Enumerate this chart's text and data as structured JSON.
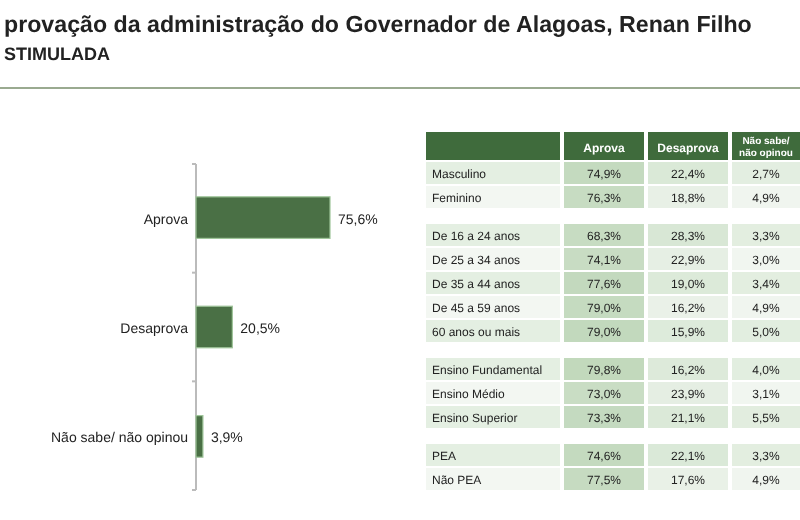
{
  "chart_data": [
    {
      "type": "bar",
      "orientation": "horizontal",
      "title": "provação da administração do Governador de Alagoas, Renan Filho",
      "subtitle": "STIMULADA",
      "categories": [
        "Aprova",
        "Desaprova",
        "Não sabe/ não opinou"
      ],
      "values": [
        75.6,
        20.5,
        3.9
      ],
      "color": "#4a7045",
      "value_labels": [
        "75,6%",
        "20,5%",
        "3,9%"
      ]
    },
    {
      "type": "heatmap",
      "categories": [
        "Aprova",
        "Desaprova",
        "Não sabe/ não opinou"
      ],
      "y_categories": [
        "Masculino",
        "Feminino"
      ],
      "cells": [
        [
          74.9,
          22.4,
          2.7
        ],
        [
          76.3,
          18.8,
          4.9
        ]
      ],
      "cell_labels": [
        [
          "74,9%",
          "22,4%",
          "2,7%"
        ],
        [
          "76,3%",
          "18,8%",
          "4,9%"
        ]
      ],
      "colors": [
        "#e4efe2",
        "#f3f7f2"
      ]
    },
    {
      "type": "heatmap",
      "categories": [
        null,
        null,
        null
      ],
      "y_categories": [
        "De 16 a 24 anos",
        "De 25 a 34 anos",
        "De 35 a 44 anos",
        "De 45 a 59 anos",
        "60 anos ou mais"
      ],
      "cells": [
        [
          68.3,
          28.3,
          3.3
        ],
        [
          74.1,
          22.9,
          3.0
        ],
        [
          77.6,
          19.0,
          3.4
        ],
        [
          79.0,
          16.2,
          4.9
        ],
        [
          79.0,
          15.9,
          5.0
        ]
      ],
      "cell_labels": [
        [
          "68,3%",
          "28,3%",
          "3,3%"
        ],
        [
          "74,1%",
          "22,9%",
          "3,0%"
        ],
        [
          "77,6%",
          "19,0%",
          "3,4%"
        ],
        [
          "79,0%",
          "16,2%",
          "4,9%"
        ],
        [
          "79,0%",
          "15,9%",
          "5,0%"
        ]
      ],
      "colors": [
        "#e4efe2",
        "#f3f7f2",
        "#e4efe2",
        "#f3f7f2",
        "#e4efe2"
      ]
    },
    {
      "type": "heatmap",
      "categories": [
        null,
        null,
        null
      ],
      "y_categories": [
        "Ensino Fundamental",
        "Ensino Médio",
        "Ensino Superior"
      ],
      "cells": [
        [
          79.8,
          16.2,
          4.0
        ],
        [
          73.0,
          23.9,
          3.1
        ],
        [
          73.3,
          21.1,
          5.5
        ]
      ],
      "cell_labels": [
        [
          "79,8%",
          "16,2%",
          "4,0%"
        ],
        [
          "73,0%",
          "23,9%",
          "3,1%"
        ],
        [
          "73,3%",
          "21,1%",
          "5,5%"
        ]
      ],
      "colors": [
        "#e4efe2",
        "#f3f7f2",
        "#e4efe2"
      ]
    },
    {
      "type": "heatmap",
      "categories": [
        null,
        null,
        null
      ],
      "y_categories": [
        "PEA",
        "Não PEA"
      ],
      "cells": [
        [
          74.6,
          22.1,
          3.3
        ],
        [
          77.5,
          17.6,
          4.9
        ]
      ],
      "cell_labels": [
        [
          "74,6%",
          "22,1%",
          "3,3%"
        ],
        [
          "77,5%",
          "17,6%",
          "4,9%"
        ]
      ],
      "colors": [
        "#e4efe2",
        "#f3f7f2"
      ]
    }
  ]
}
